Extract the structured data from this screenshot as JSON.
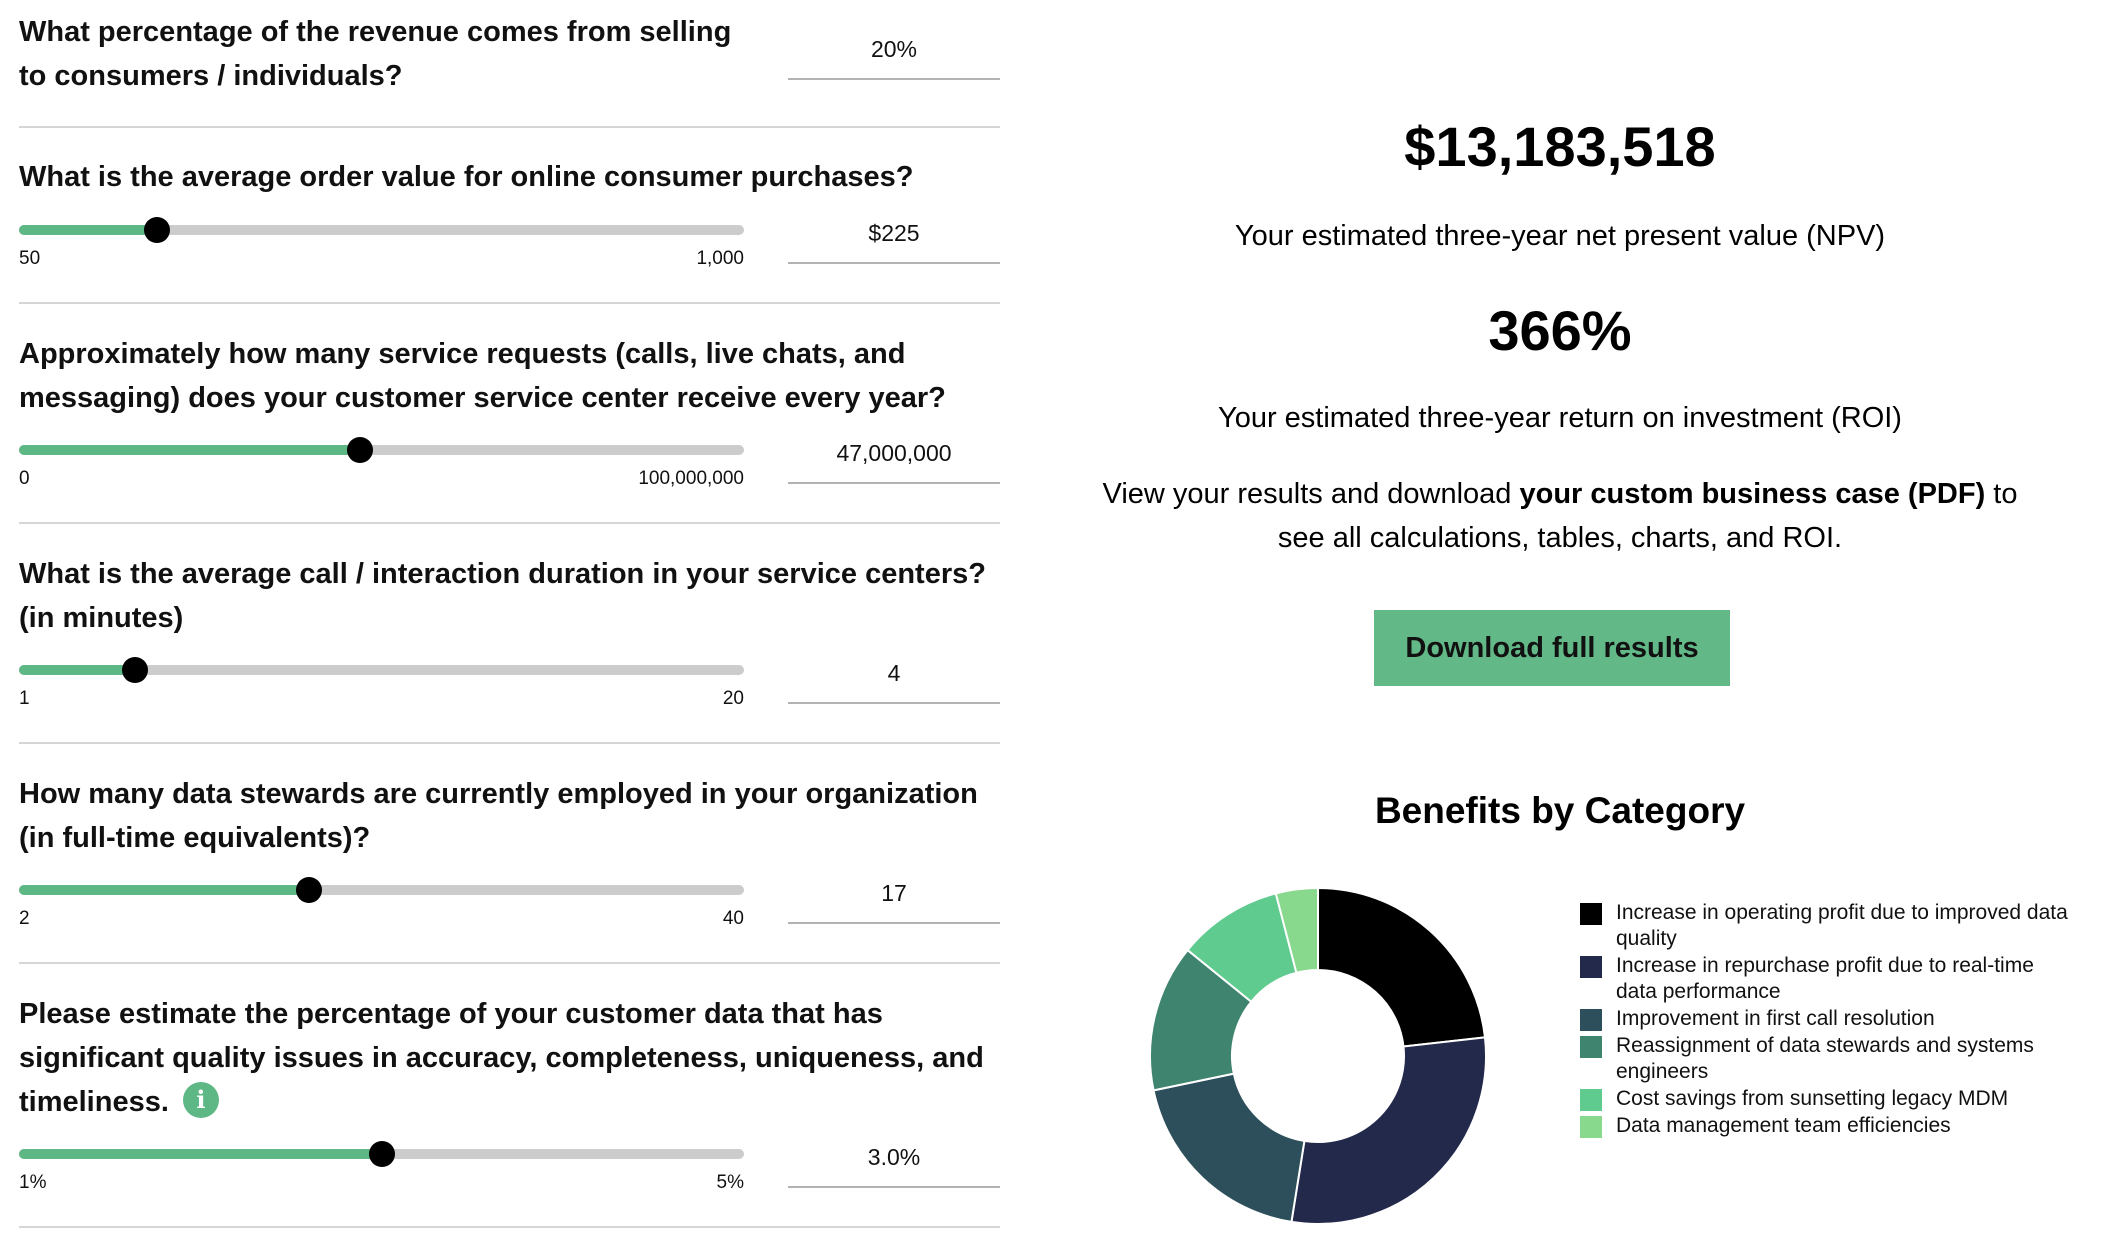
{
  "questions": [
    {
      "text": "What percentage of the revenue comes from selling to consumers / individuals?",
      "value": "20%"
    },
    {
      "text": "What is the average order value for online consumer purchases?",
      "min": "50",
      "max": "1,000",
      "value": "$225",
      "fraction": 0.19
    },
    {
      "text": "Approximately how many service requests (calls, live chats, and messaging) does your customer service center receive every year?",
      "min": "0",
      "max": "100,000,000",
      "value": "47,000,000",
      "fraction": 0.47
    },
    {
      "text": "What is the average call / interaction duration in your service centers? (in minutes)",
      "min": "1",
      "max": "20",
      "value": "4",
      "fraction": 0.16
    },
    {
      "text": "How many data stewards are currently employed in your organization (in full-time equivalents)?",
      "min": "2",
      "max": "40",
      "value": "17",
      "fraction": 0.4
    },
    {
      "text": "Please estimate the percentage of your customer data that has significant quality issues in accuracy, completeness, uniqueness, and timeliness.",
      "min": "1%",
      "max": "5%",
      "value": "3.0%",
      "fraction": 0.5
    }
  ],
  "results": {
    "npv": "$13,183,518",
    "npv_label": "Your estimated three-year net present value (NPV)",
    "roi": "366%",
    "roi_label": "Your estimated three-year return on investment (ROI)",
    "view_pre": "View your results and download ",
    "view_bold": "your custom business case (PDF)",
    "view_post": " to see all calculations, tables, charts, and ROI.",
    "download_label": "Download full results"
  },
  "chart_data": {
    "type": "pie",
    "title": "Benefits by Category",
    "categories": [
      "Increase in operating profit due to improved data quality",
      "Increase in repurchase profit due to real-time data performance",
      "Improvement in first call resolution",
      "Reassignment of data stewards and systems engineers",
      "Cost savings from sunsetting legacy MDM",
      "Data management team efficiencies"
    ],
    "values": [
      23,
      29,
      19,
      14,
      10,
      4
    ],
    "colors": [
      "#000000",
      "#23294b",
      "#2c4f5b",
      "#3f846f",
      "#5fcb8f",
      "#88d88d"
    ],
    "legend": "right"
  }
}
